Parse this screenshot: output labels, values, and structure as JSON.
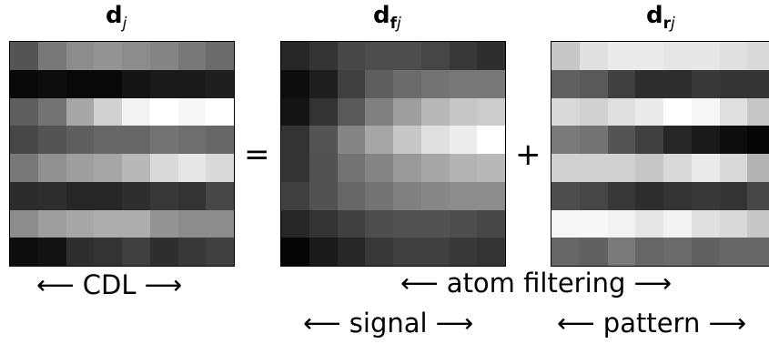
{
  "titles": {
    "d_j": {
      "base": "d",
      "sub": "j"
    },
    "d_fj": {
      "base": "d",
      "sub_bold": "f",
      "sub_italic": "j"
    },
    "d_rj": {
      "base": "d",
      "sub_bold": "r",
      "sub_italic": "j"
    }
  },
  "operators": {
    "equals": "=",
    "plus": "+"
  },
  "captions": {
    "cdl": "⟵ CDL ⟶",
    "atom_filtering": "⟵ atom filtering ⟶",
    "signal": "⟵ signal ⟶",
    "pattern": "⟵ pattern ⟶"
  },
  "matrices": {
    "d": [
      [
        0.33,
        0.47,
        0.55,
        0.58,
        0.55,
        0.52,
        0.47,
        0.42
      ],
      [
        0.03,
        0.05,
        0.03,
        0.03,
        0.08,
        0.1,
        0.1,
        0.12
      ],
      [
        0.37,
        0.45,
        0.65,
        0.82,
        0.95,
        1.0,
        0.97,
        1.0
      ],
      [
        0.28,
        0.33,
        0.37,
        0.4,
        0.4,
        0.45,
        0.43,
        0.4
      ],
      [
        0.47,
        0.57,
        0.62,
        0.65,
        0.72,
        0.85,
        0.9,
        0.85
      ],
      [
        0.17,
        0.18,
        0.15,
        0.15,
        0.18,
        0.22,
        0.2,
        0.28
      ],
      [
        0.55,
        0.62,
        0.65,
        0.68,
        0.68,
        0.58,
        0.55,
        0.55
      ],
      [
        0.05,
        0.07,
        0.18,
        0.2,
        0.25,
        0.18,
        0.22,
        0.25
      ]
    ],
    "df": [
      [
        0.15,
        0.2,
        0.28,
        0.3,
        0.3,
        0.27,
        0.22,
        0.18
      ],
      [
        0.05,
        0.12,
        0.25,
        0.37,
        0.42,
        0.45,
        0.47,
        0.47
      ],
      [
        0.08,
        0.2,
        0.35,
        0.5,
        0.62,
        0.72,
        0.78,
        0.8
      ],
      [
        0.2,
        0.33,
        0.52,
        0.65,
        0.78,
        0.88,
        0.93,
        1.0
      ],
      [
        0.2,
        0.32,
        0.45,
        0.52,
        0.6,
        0.65,
        0.7,
        0.72
      ],
      [
        0.25,
        0.32,
        0.4,
        0.45,
        0.5,
        0.53,
        0.55,
        0.55
      ],
      [
        0.15,
        0.2,
        0.25,
        0.3,
        0.32,
        0.32,
        0.3,
        0.28
      ],
      [
        0.02,
        0.1,
        0.15,
        0.22,
        0.25,
        0.25,
        0.22,
        0.2
      ]
    ],
    "dr": [
      [
        0.78,
        0.88,
        0.92,
        0.92,
        0.9,
        0.9,
        0.88,
        0.85
      ],
      [
        0.38,
        0.35,
        0.25,
        0.18,
        0.18,
        0.22,
        0.2,
        0.2
      ],
      [
        0.85,
        0.82,
        0.88,
        0.92,
        1.0,
        0.97,
        0.88,
        0.78
      ],
      [
        0.48,
        0.45,
        0.33,
        0.25,
        0.15,
        0.1,
        0.05,
        0.02
      ],
      [
        0.82,
        0.82,
        0.82,
        0.78,
        0.85,
        0.92,
        0.85,
        0.7
      ],
      [
        0.3,
        0.27,
        0.22,
        0.18,
        0.2,
        0.22,
        0.2,
        0.28
      ],
      [
        0.97,
        0.97,
        0.95,
        0.9,
        0.95,
        0.88,
        0.85,
        0.78
      ],
      [
        0.4,
        0.38,
        0.48,
        0.4,
        0.42,
        0.38,
        0.4,
        0.4
      ]
    ]
  }
}
